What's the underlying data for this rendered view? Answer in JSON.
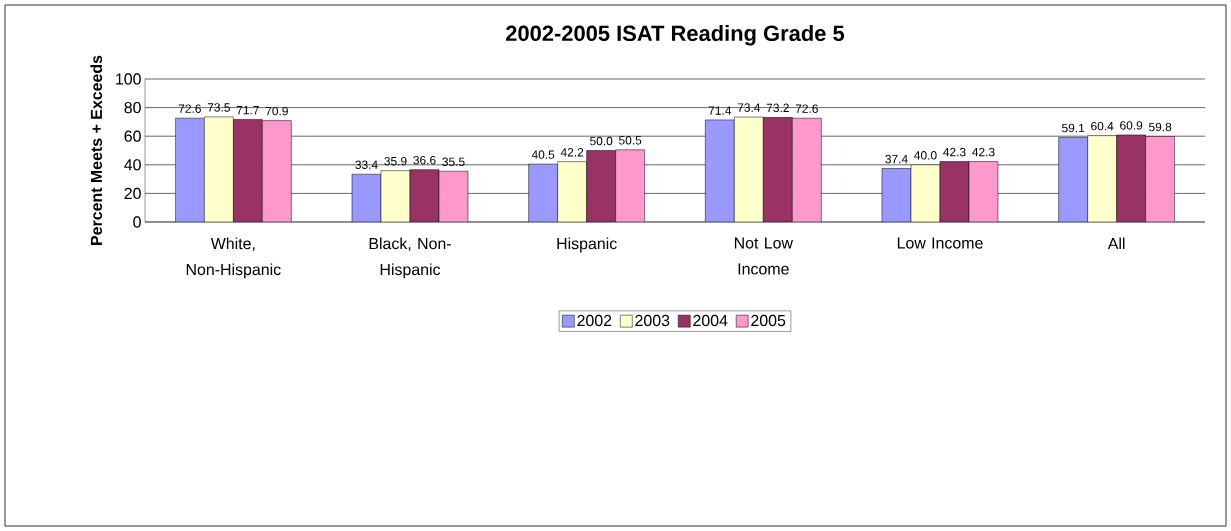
{
  "chart_data": {
    "type": "bar",
    "title": "2002-2005 ISAT Reading Grade 5",
    "ylabel": "Percent Meets + Exceeds",
    "categories": [
      "White, Non-Hispanic",
      "Black, Non-Hispanic",
      "Hispanic",
      "Not Low Income",
      "Low Income",
      "All"
    ],
    "series": [
      {
        "name": "2002",
        "color": "#9999ff",
        "values": [
          72.6,
          33.4,
          40.5,
          71.4,
          37.4,
          59.1
        ],
        "value_labels": [
          "72.6",
          "33.4",
          "40.5",
          "71.4",
          "37.4",
          "59.1"
        ]
      },
      {
        "name": "2003",
        "color": "#ffffcc",
        "values": [
          73.5,
          35.9,
          42.2,
          73.4,
          40.0,
          60.4
        ],
        "value_labels": [
          "73.5",
          "35.9",
          "42.2",
          "73.4",
          "40.0",
          "60.4"
        ]
      },
      {
        "name": "2004",
        "color": "#993366",
        "values": [
          71.7,
          36.6,
          50.0,
          73.2,
          42.3,
          60.9
        ],
        "value_labels": [
          "71.7",
          "36.6",
          "50.0",
          "73.2",
          "42.3",
          "60.9"
        ]
      },
      {
        "name": "2005",
        "color": "#ff99cc",
        "values": [
          70.9,
          35.5,
          50.5,
          72.6,
          42.3,
          59.8
        ],
        "value_labels": [
          "70.9",
          "35.5",
          "50.5",
          "72.6",
          "42.3",
          "59.8"
        ]
      }
    ],
    "ylim": [
      0,
      100
    ],
    "yticks": [
      0,
      20,
      40,
      60,
      80,
      100
    ],
    "grid": "y",
    "legend": "bottom"
  }
}
